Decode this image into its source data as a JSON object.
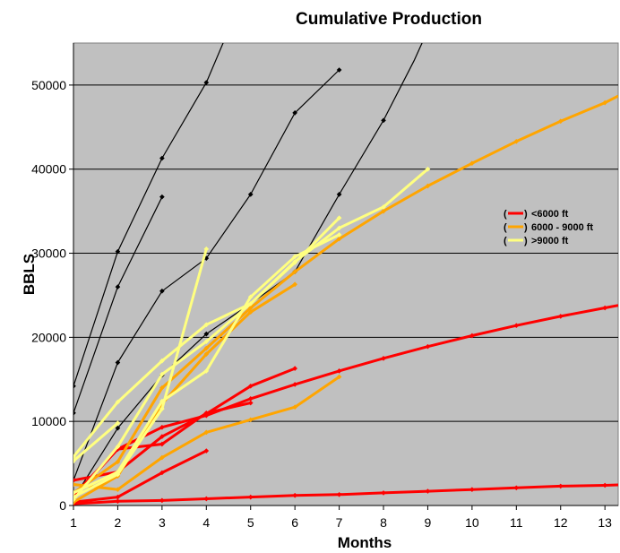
{
  "chart_data": {
    "type": "line",
    "title": "Cumulative Production",
    "xlabel": "Months",
    "ylabel": "BBLS",
    "xlim": [
      1,
      13.3
    ],
    "ylim": [
      0,
      55000
    ],
    "x_ticks": [
      1,
      2,
      3,
      4,
      5,
      6,
      7,
      8,
      9,
      10,
      11,
      12,
      13
    ],
    "y_ticks": [
      0,
      10000,
      20000,
      30000,
      40000,
      50000
    ],
    "y_tick_labels": [
      "0",
      "10000",
      "20000",
      "30000",
      "40000",
      "50000"
    ],
    "x_tick_labels": [
      "1",
      "2",
      "3",
      "4",
      "5",
      "6",
      "7",
      "8",
      "9",
      "10",
      "11",
      "12",
      "13"
    ],
    "grid": "horizontal",
    "plot_background": "#c0c0c0",
    "legend_position": "right",
    "legend": [
      {
        "open": "(",
        "close": ")",
        "label": "<6000 ft",
        "color": "#ff0000"
      },
      {
        "open": "(",
        "close": ")",
        "label": "6000 - 9000 ft",
        "color": "#ffa500"
      },
      {
        "open": "(",
        "close": ")",
        "label": ">9000 ft",
        "color": "#ffff80"
      }
    ],
    "series": [
      {
        "group": "black",
        "color": "#000000",
        "points": [
          [
            1,
            14200
          ],
          [
            2,
            30200
          ],
          [
            3,
            41300
          ],
          [
            4,
            50300
          ],
          [
            4.5,
            56500
          ]
        ]
      },
      {
        "group": "black",
        "color": "#000000",
        "points": [
          [
            1,
            11000
          ],
          [
            2,
            26000
          ],
          [
            3,
            36700
          ]
        ]
      },
      {
        "group": "black",
        "color": "#000000",
        "points": [
          [
            1,
            3000
          ],
          [
            2,
            17000
          ],
          [
            3,
            25500
          ],
          [
            4,
            29400
          ],
          [
            5,
            37000
          ],
          [
            6,
            46700
          ],
          [
            7,
            51800
          ]
        ]
      },
      {
        "group": "black",
        "color": "#000000",
        "points": [
          [
            1,
            800
          ],
          [
            2,
            9200
          ],
          [
            3,
            15500
          ],
          [
            4,
            20400
          ],
          [
            5,
            24000
          ],
          [
            6,
            27800
          ],
          [
            7,
            37000
          ],
          [
            8,
            45800
          ],
          [
            8.7,
            53000
          ],
          [
            9,
            56500
          ]
        ]
      },
      {
        "group": "red",
        "color": "#ff0000",
        "points": [
          [
            1,
            200
          ],
          [
            2,
            500
          ],
          [
            3,
            600
          ],
          [
            4,
            800
          ],
          [
            5,
            1000
          ],
          [
            6,
            1200
          ],
          [
            7,
            1300
          ],
          [
            8,
            1500
          ],
          [
            9,
            1700
          ],
          [
            10,
            1900
          ],
          [
            11,
            2100
          ],
          [
            12,
            2300
          ],
          [
            13,
            2400
          ],
          [
            13.3,
            2450
          ]
        ]
      },
      {
        "group": "red",
        "color": "#ff0000",
        "points": [
          [
            1,
            400
          ],
          [
            2,
            1000
          ],
          [
            3,
            3900
          ],
          [
            4,
            6500
          ]
        ]
      },
      {
        "group": "red",
        "color": "#ff0000",
        "points": [
          [
            1,
            1000
          ],
          [
            2,
            6700
          ],
          [
            3,
            7300
          ],
          [
            4,
            11000
          ],
          [
            5,
            12200
          ]
        ]
      },
      {
        "group": "red",
        "color": "#ff0000",
        "points": [
          [
            1,
            1200
          ],
          [
            2,
            6700
          ],
          [
            3,
            9300
          ],
          [
            4,
            10700
          ],
          [
            5,
            12700
          ],
          [
            6,
            14400
          ],
          [
            7,
            16000
          ],
          [
            8,
            17500
          ],
          [
            9,
            18900
          ],
          [
            10,
            20200
          ],
          [
            11,
            21400
          ],
          [
            12,
            22500
          ],
          [
            13,
            23500
          ],
          [
            13.3,
            23800
          ]
        ]
      },
      {
        "group": "red",
        "color": "#ff0000",
        "points": [
          [
            1,
            3000
          ],
          [
            2,
            4000
          ],
          [
            3,
            8200
          ],
          [
            4,
            10900
          ],
          [
            5,
            14200
          ],
          [
            6,
            16300
          ]
        ]
      },
      {
        "group": "orange",
        "color": "#ffa500",
        "points": [
          [
            1,
            2500
          ],
          [
            2,
            1900
          ],
          [
            3,
            5700
          ],
          [
            4,
            8700
          ],
          [
            5,
            10200
          ],
          [
            6,
            11700
          ],
          [
            7,
            15300
          ]
        ]
      },
      {
        "group": "orange",
        "color": "#ffa500",
        "points": [
          [
            1,
            400
          ],
          [
            2,
            3500
          ],
          [
            3,
            12100
          ],
          [
            4,
            18000
          ],
          [
            5,
            23000
          ],
          [
            6,
            26300
          ]
        ]
      },
      {
        "group": "orange",
        "color": "#ffa500",
        "points": [
          [
            1,
            1500
          ],
          [
            2,
            5200
          ],
          [
            3,
            14000
          ],
          [
            4,
            18700
          ],
          [
            5,
            23500
          ],
          [
            6,
            27800
          ],
          [
            7,
            31700
          ],
          [
            8,
            35000
          ],
          [
            9,
            38000
          ],
          [
            10,
            40700
          ],
          [
            11,
            43300
          ],
          [
            12,
            45700
          ],
          [
            13,
            47900
          ],
          [
            13.3,
            48700
          ]
        ]
      },
      {
        "group": "yellow",
        "color": "#ffff80",
        "points": [
          [
            1,
            5300
          ],
          [
            2,
            9800
          ]
        ]
      },
      {
        "group": "yellow",
        "color": "#ffff80",
        "points": [
          [
            1,
            5800
          ],
          [
            2,
            12300
          ],
          [
            3,
            17200
          ],
          [
            4,
            21500
          ],
          [
            5,
            24000
          ],
          [
            6,
            28900
          ],
          [
            7,
            34200
          ]
        ]
      },
      {
        "group": "yellow",
        "color": "#ffff80",
        "points": [
          [
            1,
            1500
          ],
          [
            2,
            4000
          ],
          [
            3,
            12400
          ],
          [
            4,
            16000
          ],
          [
            5,
            24800
          ],
          [
            6,
            29600
          ],
          [
            7,
            32200
          ]
        ]
      },
      {
        "group": "yellow",
        "color": "#ffff80",
        "points": [
          [
            1,
            1000
          ],
          [
            2,
            3700
          ],
          [
            3,
            11500
          ],
          [
            4,
            30500
          ]
        ]
      },
      {
        "group": "yellow",
        "color": "#ffff80",
        "points": [
          [
            1,
            700
          ],
          [
            2,
            7000
          ],
          [
            3,
            15600
          ],
          [
            4,
            19500
          ],
          [
            5,
            24000
          ],
          [
            6,
            29000
          ],
          [
            7,
            33000
          ],
          [
            8,
            35500
          ],
          [
            9,
            40000
          ]
        ]
      }
    ]
  }
}
